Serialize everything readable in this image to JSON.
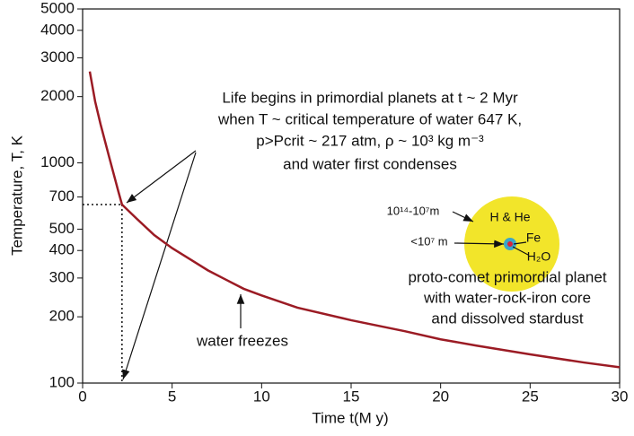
{
  "chart_data": {
    "type": "line",
    "xlabel": "Time t(M y)",
    "ylabel": "Temperature, T, K",
    "x": [
      0.4,
      0.7,
      1,
      1.5,
      2,
      2.2,
      3,
      4,
      5,
      6,
      7,
      8,
      9,
      10,
      12,
      15,
      18,
      20,
      22,
      25,
      28,
      30
    ],
    "series": [
      {
        "color": "#9b1b24",
        "values": [
          2600,
          1900,
          1500,
          1050,
          740,
          647,
          560,
          470,
          410,
          365,
          325,
          295,
          268,
          250,
          220,
          193,
          172,
          158,
          148,
          135,
          124,
          118
        ]
      }
    ],
    "xlim": [
      0,
      30
    ],
    "xticks": [
      0,
      5,
      10,
      15,
      20,
      25,
      30
    ],
    "ylim": [
      100,
      5000
    ],
    "log_y": true,
    "yticks": [
      100,
      200,
      300,
      400,
      500,
      700,
      1000,
      2000,
      3000,
      4000,
      5000
    ],
    "reference_point": {
      "x": 2.2,
      "y": 647
    },
    "annotations": [
      "Life begins in primordial planets at t ~ 2 Myr",
      "when T ~ critical temperature of water 647 K,",
      "p>Pcrit ~ 217 atm, ρ ~ 10³ kg m⁻³",
      "and water first condenses",
      "water freezes",
      "10¹⁴-10⁷m",
      "<10⁷ m",
      "H & He",
      "Fe",
      "H₂O",
      "proto-comet primordial planet",
      "with water-rock-iron core",
      "and dissolved stardust"
    ]
  }
}
